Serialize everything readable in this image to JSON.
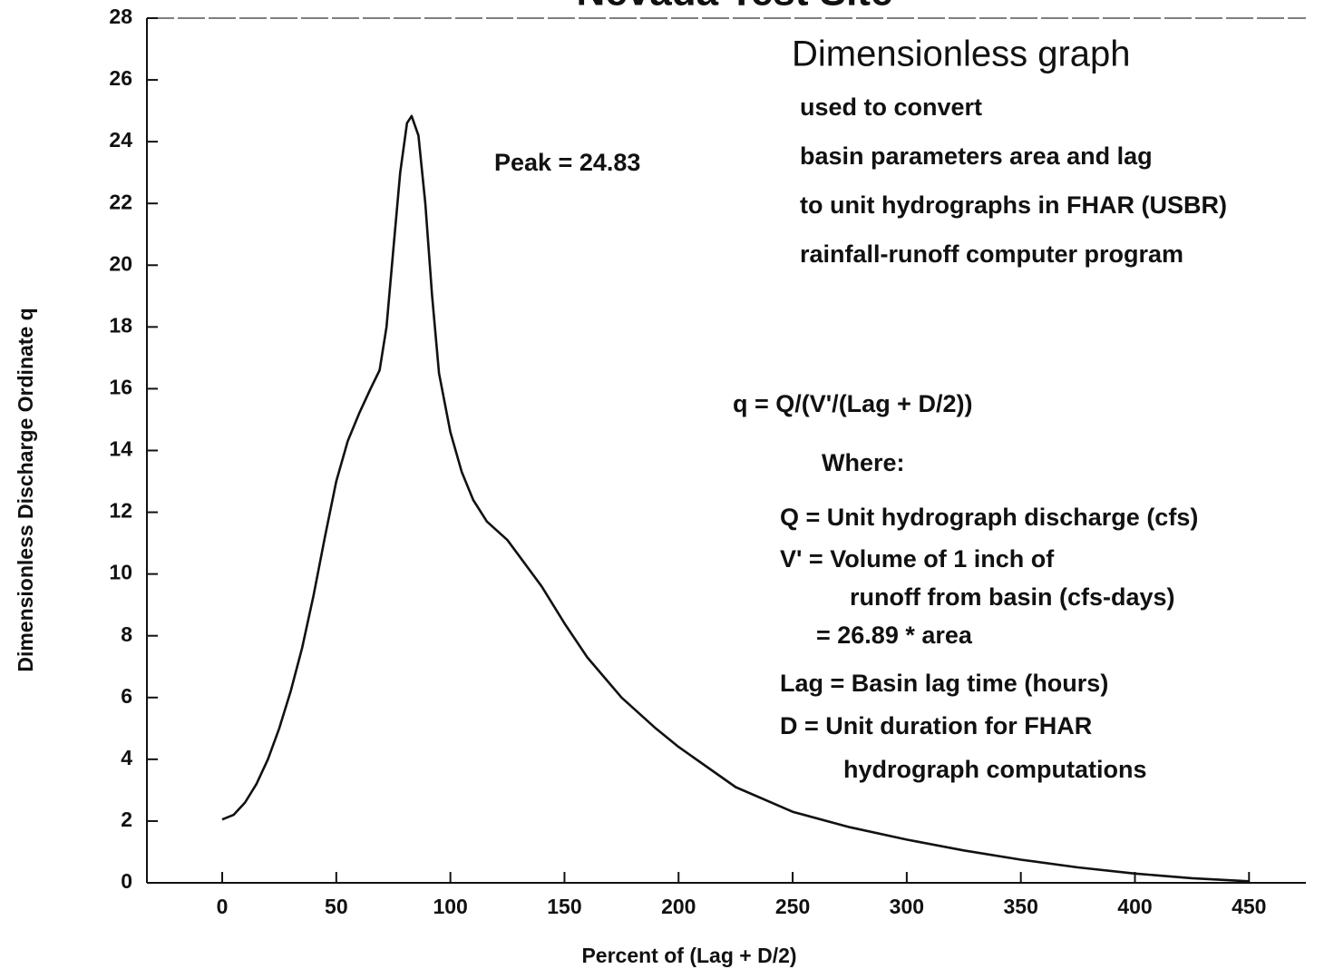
{
  "chart_data": {
    "type": "line",
    "title": "Nevada Test Site",
    "x_label": "Percent of (Lag + D/2)",
    "y_label": "Dimensionless Discharge Ordinate q",
    "xlim": [
      -33,
      463
    ],
    "ylim": [
      0,
      28
    ],
    "xticks": [
      0,
      50,
      100,
      150,
      200,
      250,
      300,
      350,
      400,
      450
    ],
    "yticks": [
      0,
      2,
      4,
      6,
      8,
      10,
      12,
      14,
      16,
      18,
      20,
      22,
      24,
      26,
      28
    ],
    "grid": false,
    "series": [
      {
        "color": "#111111",
        "x": [
          0,
          5,
          10,
          15,
          20,
          25,
          30,
          35,
          40,
          45,
          50,
          55,
          60,
          65,
          69,
          72,
          75,
          78,
          81,
          83,
          86,
          89,
          92,
          95,
          100,
          105,
          110,
          116,
          125,
          130,
          140,
          150,
          160,
          175,
          190,
          200,
          225,
          250,
          275,
          300,
          325,
          350,
          375,
          400,
          425,
          450
        ],
        "values": [
          2.05,
          2.2,
          2.6,
          3.2,
          4.0,
          5.0,
          6.2,
          7.6,
          9.3,
          11.2,
          13.0,
          14.3,
          15.2,
          16.0,
          16.6,
          18.0,
          20.5,
          23.0,
          24.6,
          24.83,
          24.2,
          22.0,
          19.0,
          16.5,
          14.6,
          13.3,
          12.4,
          11.7,
          11.1,
          10.6,
          9.6,
          8.4,
          7.3,
          6.0,
          5.0,
          4.4,
          3.1,
          2.3,
          1.8,
          1.4,
          1.05,
          0.75,
          0.5,
          0.3,
          0.15,
          0.05
        ]
      }
    ],
    "annotations": [
      "Peak = 24.83",
      "Dimensionless graph",
      "used to convert",
      "basin parameters area and lag",
      "to unit hydrographs in FHAR (USBR)",
      "rainfall-runoff computer program",
      "q = Q/(V'/(Lag + D/2))",
      "Where:",
      "Q = Unit hydrograph discharge (cfs)",
      "V' = Volume of 1 inch of",
      "runoff from basin (cfs-days)",
      "= 26.89 * area",
      "Lag = Basin lag time (hours)",
      "D = Unit duration for FHAR",
      "hydrograph computations"
    ]
  }
}
